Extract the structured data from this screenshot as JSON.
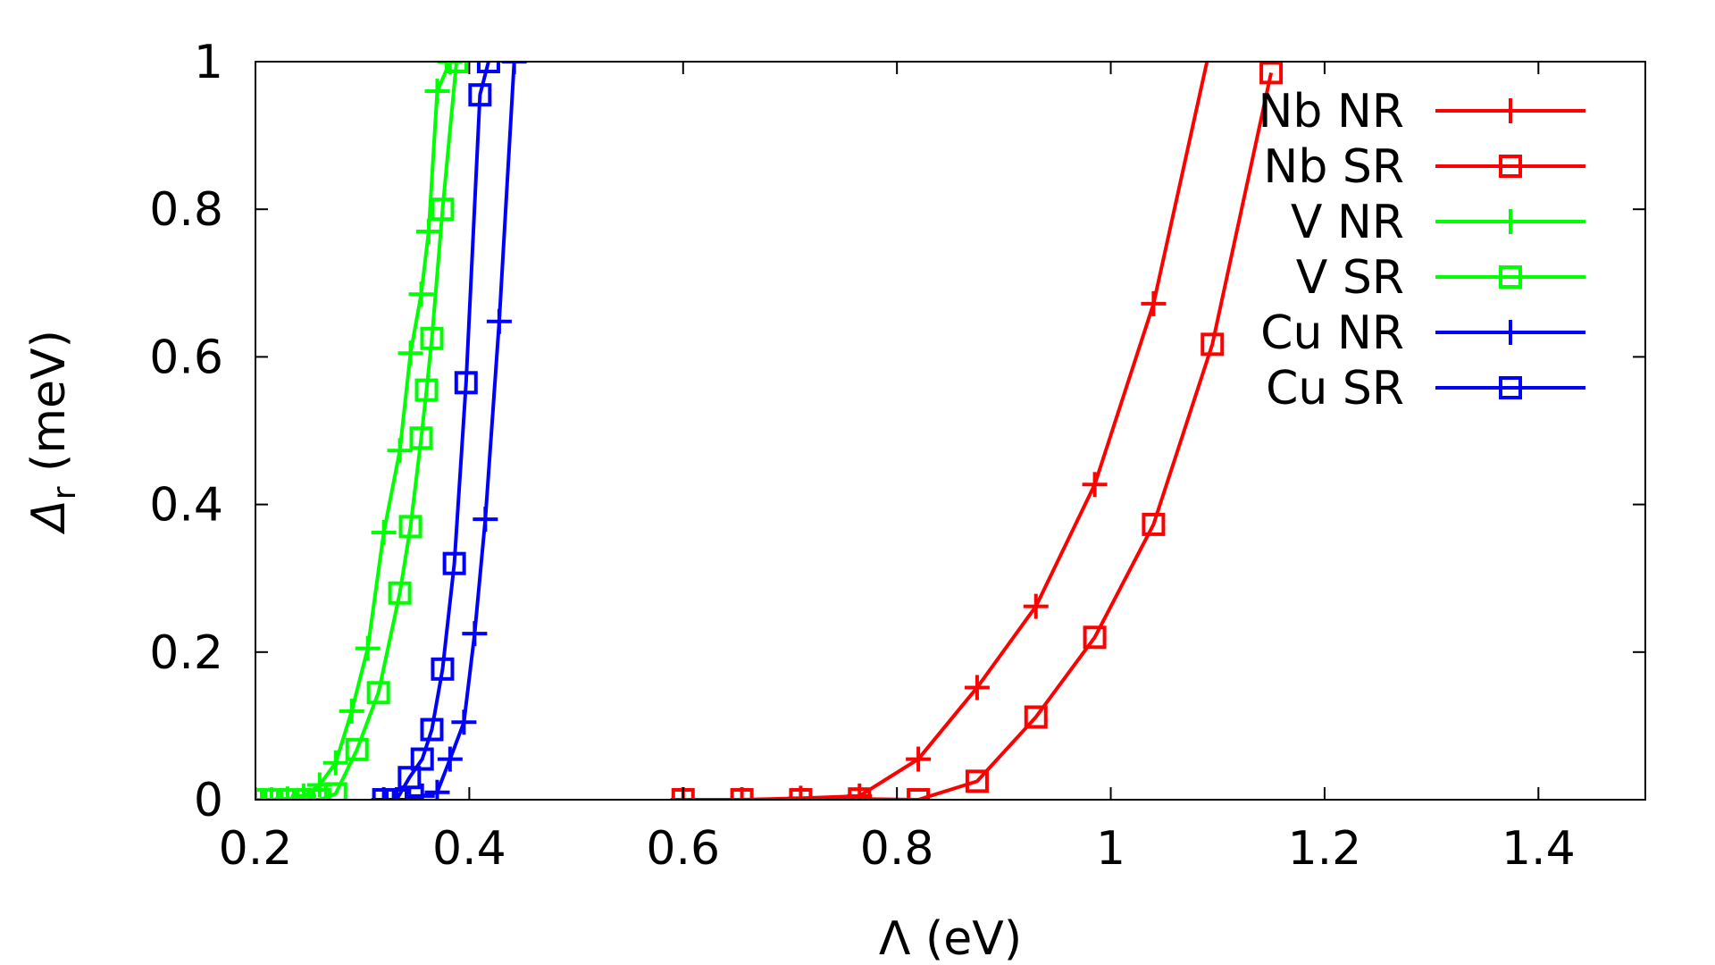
{
  "chart_data": {
    "type": "line",
    "title": "",
    "xlabel": "Λ (eV)",
    "ylabel": {
      "main": "Δ",
      "sub": "r",
      "unit": " (meV)"
    },
    "xlim": [
      0.2,
      1.5
    ],
    "ylim": [
      0,
      1
    ],
    "grid": false,
    "legend_position": "top-right",
    "xticks": [
      {
        "value": 0.2,
        "label": "0.2"
      },
      {
        "value": 0.4,
        "label": "0.4"
      },
      {
        "value": 0.6,
        "label": "0.6"
      },
      {
        "value": 0.8,
        "label": "0.8"
      },
      {
        "value": 1.0,
        "label": "1"
      },
      {
        "value": 1.2,
        "label": "1.2"
      },
      {
        "value": 1.4,
        "label": "1.4"
      }
    ],
    "yticks": [
      {
        "value": 0,
        "label": "0"
      },
      {
        "value": 0.2,
        "label": "0.2"
      },
      {
        "value": 0.4,
        "label": "0.4"
      },
      {
        "value": 0.6,
        "label": "0.6"
      },
      {
        "value": 0.8,
        "label": "0.8"
      },
      {
        "value": 1.0,
        "label": "1"
      }
    ],
    "series": [
      {
        "name": "Nb NR",
        "color": "#ff0000",
        "marker": "plus",
        "x": [
          0.6,
          0.655,
          0.71,
          0.765,
          0.82,
          0.875,
          0.93,
          0.985,
          1.04
        ],
        "y": [
          0.0,
          0.0,
          0.002,
          0.005,
          0.055,
          0.152,
          0.262,
          0.427,
          0.672
        ],
        "extend": [
          1.09,
          1.0
        ]
      },
      {
        "name": "Nb SR",
        "color": "#ff0000",
        "marker": "square",
        "x": [
          0.6,
          0.655,
          0.71,
          0.765,
          0.82,
          0.875,
          0.93,
          0.985,
          1.04,
          1.095,
          1.15
        ],
        "y": [
          0.0,
          0.0,
          0.0,
          0.001,
          0.0,
          0.025,
          0.112,
          0.22,
          0.373,
          0.617,
          0.985
        ]
      },
      {
        "name": "V NR",
        "color": "#00ff00",
        "marker": "plus",
        "x": [
          0.2,
          0.215,
          0.23,
          0.245,
          0.26,
          0.275,
          0.29,
          0.305,
          0.32,
          0.335,
          0.345,
          0.355,
          0.362,
          0.37,
          0.382
        ],
        "y": [
          0.0,
          0.0,
          0.001,
          0.005,
          0.02,
          0.05,
          0.12,
          0.205,
          0.362,
          0.473,
          0.605,
          0.685,
          0.77,
          0.96,
          1.0
        ]
      },
      {
        "name": "V SR",
        "color": "#00ff00",
        "marker": "square",
        "x": [
          0.2,
          0.215,
          0.23,
          0.245,
          0.26,
          0.275,
          0.295,
          0.315,
          0.335,
          0.345,
          0.355,
          0.36,
          0.365,
          0.375,
          0.388
        ],
        "y": [
          0.0,
          0.0,
          0.0,
          0.0,
          0.0,
          0.008,
          0.068,
          0.145,
          0.28,
          0.37,
          0.49,
          0.555,
          0.625,
          0.8,
          1.0
        ]
      },
      {
        "name": "Cu NR",
        "color": "#0000ff",
        "marker": "plus",
        "x": [
          0.32,
          0.332,
          0.344,
          0.356,
          0.37,
          0.382,
          0.395,
          0.405,
          0.415,
          0.428,
          0.442
        ],
        "y": [
          0.0,
          0.0,
          0.0,
          0.005,
          0.01,
          0.055,
          0.105,
          0.225,
          0.38,
          0.648,
          1.0
        ]
      },
      {
        "name": "Cu SR",
        "color": "#0000ff",
        "marker": "square",
        "x": [
          0.32,
          0.332,
          0.344,
          0.356,
          0.365,
          0.375,
          0.386,
          0.397,
          0.41,
          0.418
        ],
        "y": [
          0.0,
          0.0,
          0.03,
          0.055,
          0.095,
          0.177,
          0.32,
          0.565,
          0.955,
          1.0
        ]
      }
    ]
  }
}
